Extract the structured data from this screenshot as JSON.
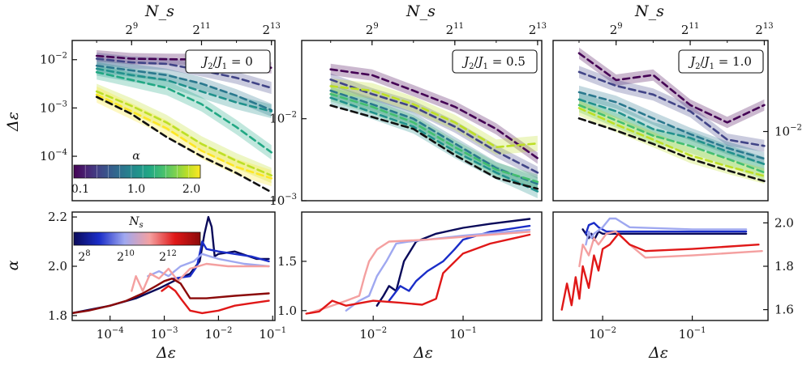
{
  "figure": {
    "top_axis_label": "N_s",
    "bottom_axis_label": "Δε",
    "top_ylabel": "Δε",
    "bottom_ylabel": "α"
  },
  "colorbar_alpha": {
    "label": "α",
    "ticks": [
      "0.1",
      "1.0",
      "2.0"
    ],
    "colors": [
      "#440154",
      "#482475",
      "#414487",
      "#355f8d",
      "#2a788e",
      "#21918c",
      "#22a884",
      "#44bf70",
      "#7ad151",
      "#bddf26",
      "#fde725"
    ]
  },
  "colorbar_ns": {
    "label": "N_s",
    "ticks": [
      "2^8",
      "2^10",
      "2^12"
    ],
    "colors": [
      "#0a0a5a",
      "#1a2dc8",
      "#9fa8f0",
      "#f4a0a0",
      "#e01818",
      "#8b0a0a"
    ]
  },
  "chart_data": [
    {
      "type": "line",
      "panel": "top-left",
      "annotation": "J_2/J_1 = 0",
      "xscale": "log2",
      "yscale": "log10",
      "xlim": [
        7.3,
        13.1
      ],
      "ylim": [
        1.2e-05,
        0.025
      ],
      "xticks": [
        "2^9",
        "2^11",
        "2^13"
      ],
      "yticks": [
        "10^-2",
        "10^-3",
        "10^-4"
      ],
      "x_log2_Ns": [
        8,
        9,
        10,
        11,
        12,
        13
      ],
      "series": [
        {
          "name": "α=0.1",
          "color": "#440154",
          "values": [
            0.012,
            0.0105,
            0.0102,
            0.0101,
            0.0075,
            0.0068
          ]
        },
        {
          "name": "α=0.3",
          "color": "#414487",
          "values": [
            0.0105,
            0.0088,
            0.0082,
            0.006,
            0.0042,
            0.0026
          ]
        },
        {
          "name": "α=0.6",
          "color": "#2a788e",
          "values": [
            0.0075,
            0.006,
            0.0048,
            0.0032,
            0.0018,
            0.0009
          ]
        },
        {
          "name": "α=1.0",
          "color": "#21918c",
          "values": [
            0.0065,
            0.0048,
            0.0038,
            0.0022,
            0.0013,
            0.00085
          ]
        },
        {
          "name": "α=1.4",
          "color": "#22a884",
          "values": [
            0.0055,
            0.0038,
            0.0026,
            0.0012,
            0.0004,
            0.00012
          ]
        },
        {
          "name": "α=1.8",
          "color": "#bddf26",
          "values": [
            0.0022,
            0.0011,
            0.0005,
            0.00018,
            8e-05,
            4e-05
          ]
        },
        {
          "name": "α=2.0",
          "color": "#fde725",
          "values": [
            0.0019,
            0.00085,
            0.00038,
            0.00013,
            6e-05,
            3.5e-05
          ]
        },
        {
          "name": "reference",
          "color": "#111111",
          "values": [
            0.0017,
            0.00075,
            0.00025,
            0.0001,
            4.5e-05,
            1.8e-05
          ]
        }
      ]
    },
    {
      "type": "line",
      "panel": "top-middle",
      "annotation": "J_2/J_1 = 0.5",
      "xscale": "log2",
      "yscale": "log10",
      "xlim": [
        7.3,
        13.1
      ],
      "ylim": [
        0.001,
        0.09
      ],
      "xticks": [
        "2^9",
        "2^11",
        "2^13"
      ],
      "yticks": [
        "10^-2",
        "10^-3"
      ],
      "x_log2_Ns": [
        8,
        9,
        10,
        11,
        12,
        13
      ],
      "series": [
        {
          "name": "α=0.1",
          "color": "#440154",
          "values": [
            0.04,
            0.034,
            0.022,
            0.014,
            0.0075,
            0.0033
          ]
        },
        {
          "name": "α=0.3",
          "color": "#414487",
          "values": [
            0.03,
            0.02,
            0.014,
            0.008,
            0.004,
            0.0022
          ]
        },
        {
          "name": "α=0.6",
          "color": "#2a788e",
          "values": [
            0.022,
            0.015,
            0.01,
            0.005,
            0.0025,
            0.0016
          ]
        },
        {
          "name": "α=1.0",
          "color": "#21918c",
          "values": [
            0.018,
            0.012,
            0.008,
            0.004,
            0.0022,
            0.0013
          ]
        },
        {
          "name": "α=1.4",
          "color": "#44bf70",
          "values": [
            0.02,
            0.014,
            0.009,
            0.0045,
            0.0024,
            0.0017
          ]
        },
        {
          "name": "α=1.8",
          "color": "#bddf26",
          "values": [
            0.025,
            0.022,
            0.015,
            0.009,
            0.0045,
            0.005
          ]
        },
        {
          "name": "reference",
          "color": "#111111",
          "values": [
            0.0145,
            0.0105,
            0.0075,
            0.0036,
            0.0019,
            0.0014
          ]
        }
      ]
    },
    {
      "type": "line",
      "panel": "top-right",
      "annotation": "J_2/J_1 = 1.0",
      "xscale": "log2",
      "yscale": "log10",
      "xlim": [
        7.3,
        13.1
      ],
      "ylim": [
        0.0025,
        0.062
      ],
      "xticks": [
        "2^9",
        "2^11",
        "2^13"
      ],
      "yticks": [
        "10^-2"
      ],
      "x_log2_Ns": [
        8,
        9,
        10,
        11,
        12,
        13
      ],
      "series": [
        {
          "name": "α=0.1",
          "color": "#440154",
          "values": [
            0.048,
            0.028,
            0.031,
            0.017,
            0.012,
            0.017
          ]
        },
        {
          "name": "α=0.3",
          "color": "#414487",
          "values": [
            0.033,
            0.025,
            0.021,
            0.015,
            0.0085,
            0.0075
          ]
        },
        {
          "name": "α=0.6",
          "color": "#2a788e",
          "values": [
            0.022,
            0.018,
            0.013,
            0.0095,
            0.0072,
            0.0058
          ]
        },
        {
          "name": "α=1.0",
          "color": "#21918c",
          "values": [
            0.019,
            0.015,
            0.0105,
            0.0088,
            0.0067,
            0.0052
          ]
        },
        {
          "name": "α=1.4",
          "color": "#44bf70",
          "values": [
            0.017,
            0.0125,
            0.0092,
            0.0075,
            0.0058,
            0.0044
          ]
        },
        {
          "name": "α=1.8",
          "color": "#bddf26",
          "values": [
            0.016,
            0.0115,
            0.0085,
            0.0062,
            0.005,
            0.0041
          ]
        },
        {
          "name": "reference",
          "color": "#111111",
          "values": [
            0.013,
            0.0102,
            0.0078,
            0.0058,
            0.0046,
            0.0037
          ]
        }
      ]
    },
    {
      "type": "line",
      "panel": "bottom-left",
      "xscale": "log10",
      "yscale": "linear",
      "xlim": [
        2e-05,
        0.11
      ],
      "ylim": [
        1.78,
        2.22
      ],
      "xticks": [
        "10^-4",
        "10^-3",
        "10^-2",
        "10^-1"
      ],
      "yticks": [
        "1.8",
        "2.0",
        "2.2"
      ],
      "series": [
        {
          "name": "N_s=2^8",
          "color": "#0a0a5a",
          "x": [
            2e-05,
            0.0001,
            0.0003,
            0.0008,
            0.0015,
            0.003,
            0.0045,
            0.0055,
            0.0065,
            0.0075,
            0.0085,
            0.01,
            0.02,
            0.05,
            0.085
          ],
          "y": [
            1.81,
            1.84,
            1.87,
            1.91,
            1.94,
            1.97,
            2.02,
            2.13,
            2.2,
            2.16,
            2.04,
            2.05,
            2.06,
            2.03,
            2.03
          ]
        },
        {
          "name": "N_s=2^9",
          "color": "#1a2dc8",
          "x": [
            0.0015,
            0.003,
            0.004,
            0.0045,
            0.005,
            0.006,
            0.01,
            0.02,
            0.04,
            0.085
          ],
          "y": [
            1.95,
            1.96,
            2.0,
            2.05,
            2.1,
            2.07,
            2.06,
            2.05,
            2.04,
            2.02
          ]
        },
        {
          "name": "N_s=2^10",
          "color": "#9fa8f0",
          "x": [
            0.0005,
            0.0008,
            0.0012,
            0.002,
            0.0035,
            0.005,
            0.007,
            0.01,
            0.03,
            0.085
          ],
          "y": [
            1.96,
            1.98,
            1.96,
            2.0,
            2.02,
            2.05,
            2.04,
            2.03,
            2.01,
            2.0
          ]
        },
        {
          "name": "N_s=2^11",
          "color": "#f4a0a0",
          "x": [
            0.00025,
            0.0003,
            0.0004,
            0.00055,
            0.0008,
            0.0012,
            0.0018,
            0.003,
            0.006,
            0.015,
            0.04,
            0.085
          ],
          "y": [
            1.9,
            1.96,
            1.9,
            1.97,
            1.95,
            1.99,
            1.94,
            1.99,
            2.01,
            2.0,
            2.0,
            2.0
          ]
        },
        {
          "name": "N_s=2^12",
          "color": "#e01818",
          "x": [
            0.0009,
            0.0012,
            0.0016,
            0.002,
            0.003,
            0.005,
            0.01,
            0.02,
            0.04,
            0.085
          ],
          "y": [
            1.9,
            1.92,
            1.9,
            1.87,
            1.82,
            1.81,
            1.82,
            1.84,
            1.85,
            1.86
          ]
        },
        {
          "name": "N_s=2^13",
          "color": "#8b0a0a",
          "x": [
            2e-05,
            4e-05,
            0.0001,
            0.0002,
            0.0004,
            0.0007,
            0.001,
            0.0014,
            0.002,
            0.003,
            0.006,
            0.02,
            0.085
          ],
          "y": [
            1.81,
            1.82,
            1.84,
            1.86,
            1.89,
            1.92,
            1.94,
            1.95,
            1.93,
            1.87,
            1.87,
            1.88,
            1.89
          ]
        }
      ]
    },
    {
      "type": "line",
      "panel": "bottom-middle",
      "xscale": "log10",
      "yscale": "linear",
      "xlim": [
        0.0016,
        0.75
      ],
      "ylim": [
        0.9,
        2.0
      ],
      "xticks": [
        "10^-2",
        "10^-1"
      ],
      "yticks": [
        "1.0",
        "1.5"
      ],
      "series": [
        {
          "name": "N_s=2^8",
          "color": "#0a0a5a",
          "x": [
            0.011,
            0.013,
            0.015,
            0.018,
            0.022,
            0.03,
            0.05,
            0.1,
            0.2,
            0.55
          ],
          "y": [
            1.05,
            1.15,
            1.25,
            1.2,
            1.5,
            1.7,
            1.78,
            1.84,
            1.88,
            1.93
          ]
        },
        {
          "name": "N_s=2^9",
          "color": "#1a2dc8",
          "x": [
            0.015,
            0.02,
            0.025,
            0.03,
            0.04,
            0.06,
            0.08,
            0.1,
            0.2,
            0.55
          ],
          "y": [
            1.1,
            1.25,
            1.2,
            1.3,
            1.4,
            1.5,
            1.62,
            1.72,
            1.8,
            1.86
          ]
        },
        {
          "name": "N_s=2^10",
          "color": "#9fa8f0",
          "x": [
            0.005,
            0.007,
            0.009,
            0.011,
            0.014,
            0.018,
            0.025,
            0.04,
            0.1,
            0.55
          ],
          "y": [
            1.0,
            1.1,
            1.15,
            1.35,
            1.5,
            1.68,
            1.7,
            1.72,
            1.76,
            1.82
          ]
        },
        {
          "name": "N_s=2^11",
          "color": "#f4a0a0",
          "x": [
            0.002,
            0.003,
            0.005,
            0.007,
            0.008,
            0.009,
            0.011,
            0.015,
            0.04,
            0.55
          ],
          "y": [
            0.98,
            1.03,
            1.1,
            1.15,
            1.35,
            1.5,
            1.62,
            1.7,
            1.72,
            1.8
          ]
        },
        {
          "name": "N_s=2^12",
          "color": "#e01818",
          "x": [
            0.0018,
            0.0025,
            0.0035,
            0.005,
            0.01,
            0.02,
            0.035,
            0.05,
            0.06,
            0.1,
            0.2,
            0.55
          ],
          "y": [
            0.97,
            0.99,
            1.1,
            1.05,
            1.1,
            1.08,
            1.06,
            1.12,
            1.38,
            1.58,
            1.68,
            1.77
          ]
        }
      ]
    },
    {
      "type": "line",
      "panel": "bottom-right",
      "xscale": "log10",
      "yscale": "linear",
      "xlim": [
        0.0028,
        0.7
      ],
      "ylim": [
        1.55,
        2.05
      ],
      "xticks": [
        "10^-2",
        "10^-1"
      ],
      "yticks": [
        "2.0",
        "1.8",
        "1.6"
      ],
      "series": [
        {
          "name": "N_s=2^8",
          "color": "#0a0a5a",
          "x": [
            0.006,
            0.007,
            0.0075,
            0.008,
            0.009,
            0.01,
            0.012,
            0.02,
            0.1,
            0.4
          ],
          "y": [
            1.97,
            1.93,
            1.95,
            1.92,
            1.96,
            1.95,
            1.95,
            1.95,
            1.95,
            1.95
          ]
        },
        {
          "name": "N_s=2^9",
          "color": "#1a2dc8",
          "x": [
            0.0065,
            0.007,
            0.008,
            0.009,
            0.011,
            0.014,
            0.02,
            0.1,
            0.4
          ],
          "y": [
            1.95,
            1.99,
            2.0,
            1.98,
            1.96,
            1.96,
            1.96,
            1.96,
            1.96
          ]
        },
        {
          "name": "N_s=2^10",
          "color": "#9fa8f0",
          "x": [
            0.0065,
            0.007,
            0.0075,
            0.008,
            0.01,
            0.012,
            0.014,
            0.02,
            0.1,
            0.4
          ],
          "y": [
            1.9,
            1.96,
            1.93,
            1.95,
            1.98,
            2.02,
            2.02,
            1.98,
            1.97,
            1.97
          ]
        },
        {
          "name": "N_s=2^11",
          "color": "#f4a0a0",
          "x": [
            0.0055,
            0.006,
            0.007,
            0.008,
            0.009,
            0.011,
            0.014,
            0.02,
            0.03,
            0.1,
            0.6
          ],
          "y": [
            1.8,
            1.9,
            1.85,
            1.93,
            1.9,
            1.95,
            1.96,
            1.9,
            1.84,
            1.85,
            1.87
          ]
        },
        {
          "name": "N_s=2^12",
          "color": "#e01818",
          "x": [
            0.0035,
            0.004,
            0.0045,
            0.005,
            0.0055,
            0.006,
            0.007,
            0.008,
            0.009,
            0.01,
            0.012,
            0.015,
            0.02,
            0.03,
            0.1,
            0.55
          ],
          "y": [
            1.6,
            1.72,
            1.62,
            1.75,
            1.65,
            1.8,
            1.7,
            1.85,
            1.78,
            1.88,
            1.9,
            1.95,
            1.9,
            1.87,
            1.88,
            1.9
          ]
        }
      ]
    }
  ]
}
